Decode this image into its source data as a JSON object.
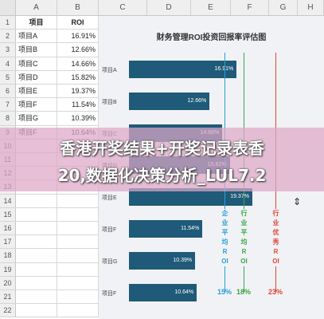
{
  "columns": [
    "A",
    "B",
    "C",
    "D",
    "E",
    "F",
    "G",
    "H"
  ],
  "rows": [
    "1",
    "2",
    "3",
    "4",
    "5",
    "6",
    "7",
    "8",
    "9",
    "10",
    "11",
    "12",
    "13",
    "14",
    "15",
    "16",
    "17",
    "18",
    "19",
    "20",
    "21",
    "22"
  ],
  "table": {
    "headers": [
      "项目",
      "ROI"
    ],
    "rows": [
      {
        "name": "项目A",
        "roi": "16.91%"
      },
      {
        "name": "项目B",
        "roi": "12.66%"
      },
      {
        "name": "项目C",
        "roi": "14.66%"
      },
      {
        "name": "项目D",
        "roi": "15.82%"
      },
      {
        "name": "项目E",
        "roi": "19.37%"
      },
      {
        "name": "项目F",
        "roi": "11.54%"
      },
      {
        "name": "项目G",
        "roi": "10.39%"
      },
      {
        "name": "项目F",
        "roi": "10.64%"
      }
    ]
  },
  "chart_data": {
    "type": "bar",
    "orientation": "horizontal",
    "title": "财务管理ROI投资回报率评估图",
    "categories": [
      "项目A",
      "项目B",
      "项目C",
      "项目D",
      "项目E",
      "项目F",
      "项目G",
      "项目F"
    ],
    "values": [
      16.91,
      12.66,
      14.66,
      15.82,
      19.37,
      11.54,
      10.39,
      10.64
    ],
    "value_labels": [
      "16.91%",
      "12.66%",
      "14.66%",
      "15.82%",
      "19.37%",
      "11.54%",
      "10.39%",
      "10.64%"
    ],
    "xlim": [
      0,
      25
    ],
    "bar_color": "#1f5a79",
    "reference_lines": [
      {
        "label": "企业平均ROI",
        "value": 15,
        "value_label": "15%",
        "color": "#2a9fd6"
      },
      {
        "label": "行业平均ROI",
        "value": 18,
        "value_label": "18%",
        "color": "#3aa84a"
      },
      {
        "label": "行业优秀ROI",
        "value": 23,
        "value_label": "23%",
        "color": "#e0453a"
      }
    ]
  },
  "overlay": {
    "line1": "香港开奖结果+开奖记录表香",
    "line2": "20,数据化决策分析_LUL7.2"
  },
  "colors": {
    "background_panel": "#f1f2f5",
    "overlay": "#dea8c8"
  }
}
